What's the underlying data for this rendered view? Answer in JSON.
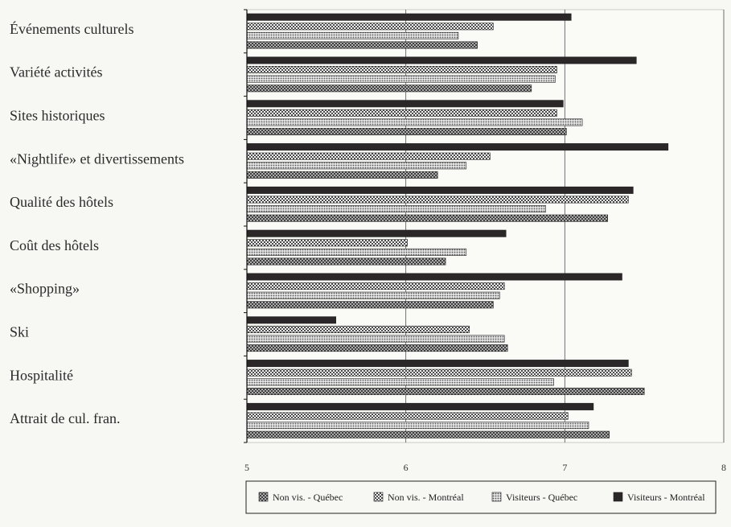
{
  "chart_data": {
    "type": "bar",
    "orientation": "horizontal",
    "categories": [
      "Événements culturels",
      "Variété activités",
      "Sites historiques",
      "«Nightlife» et divertissements",
      "Qualité des hôtels",
      "Coût des hôtels",
      "«Shopping»",
      "Ski",
      "Hospitalité",
      "Attrait de cul. fran."
    ],
    "series": [
      {
        "name": "Visiteurs - Montréal",
        "values": [
          7.04,
          7.45,
          6.99,
          7.65,
          7.43,
          6.63,
          7.36,
          5.56,
          7.4,
          7.18
        ]
      },
      {
        "name": "Non vis. - Montréal",
        "values": [
          6.55,
          6.95,
          6.95,
          6.53,
          7.4,
          6.01,
          6.62,
          6.4,
          7.42,
          7.02
        ]
      },
      {
        "name": "Visiteurs - Québec",
        "values": [
          6.33,
          6.94,
          7.11,
          6.38,
          6.88,
          6.38,
          6.59,
          6.62,
          6.93,
          7.15
        ]
      },
      {
        "name": "Non vis. - Québec",
        "values": [
          6.45,
          6.79,
          7.01,
          6.2,
          7.27,
          6.25,
          6.55,
          6.64,
          7.5,
          7.28
        ]
      }
    ],
    "xlim": [
      5,
      8
    ],
    "xticks": [
      "5",
      "6",
      "7",
      "8"
    ],
    "grid": true,
    "legend_position": "bottom",
    "legend_order": [
      "Non vis. - Québec",
      "Non vis. - Montréal",
      "Visiteurs - Québec",
      "Visiteurs - Montréal"
    ],
    "series_styles": {
      "Visiteurs - Montréal": {
        "pattern": "solid",
        "color": "#2b2628"
      },
      "Non vis. - Montréal": {
        "pattern": "checker",
        "color": "#4a4a4a"
      },
      "Visiteurs - Québec": {
        "pattern": "dots",
        "color": "#555555"
      },
      "Non vis. - Québec": {
        "pattern": "crosshatch",
        "color": "#333333"
      }
    }
  }
}
